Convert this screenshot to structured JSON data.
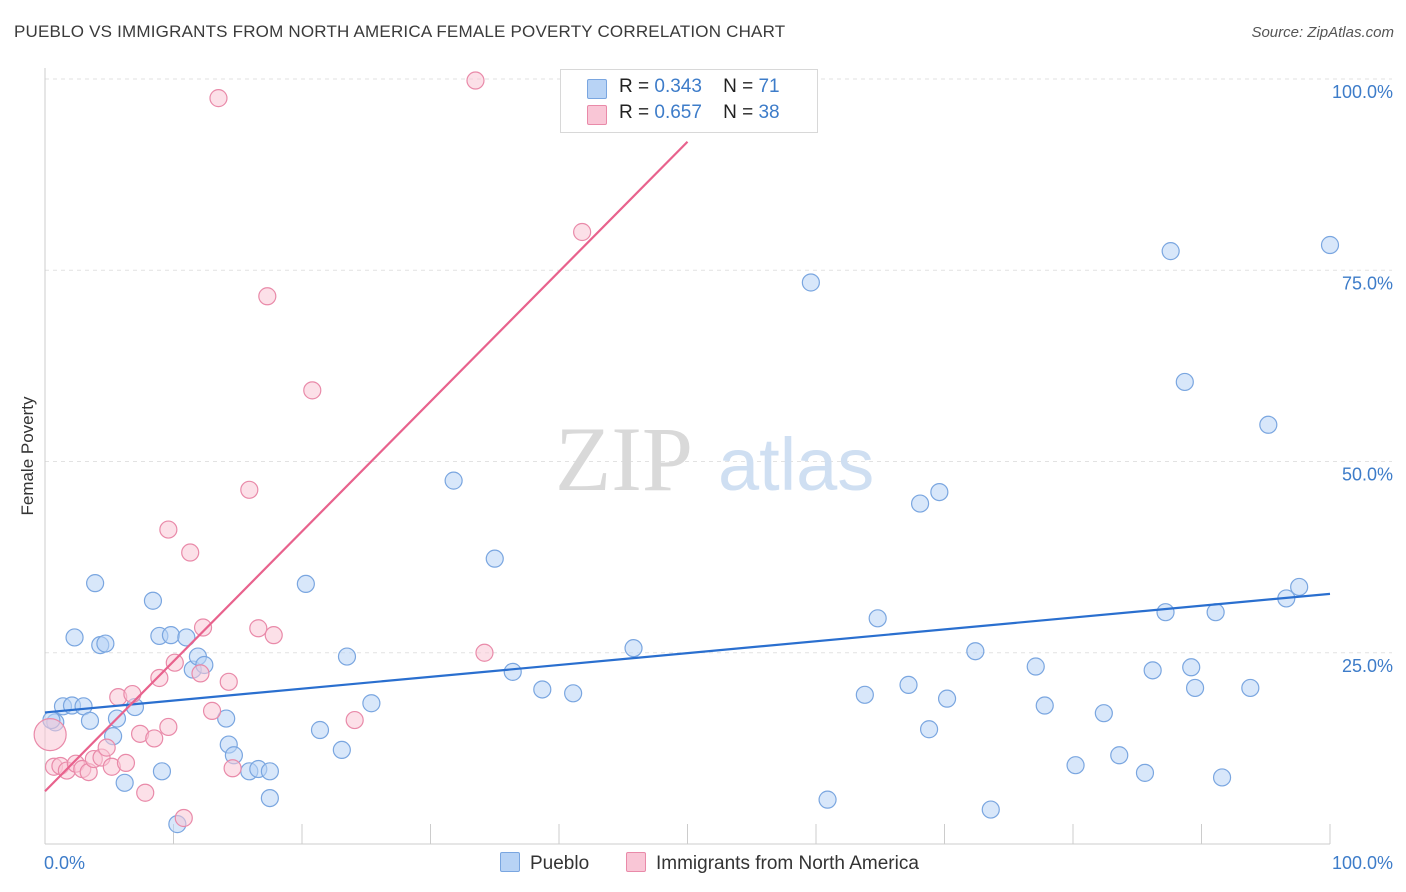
{
  "title": "PUEBLO VS IMMIGRANTS FROM NORTH AMERICA FEMALE POVERTY CORRELATION CHART",
  "source": "Source: ZipAtlas.com",
  "watermark": {
    "zip": "ZIP",
    "atlas": "atlas"
  },
  "legend": {
    "rows": [
      {
        "r_label": "R =",
        "r_value": "0.343",
        "n_label": "N =",
        "n_value": "71",
        "color": "#b8d3f5",
        "border": "#7aa6e0"
      },
      {
        "r_label": "R =",
        "r_value": "0.657",
        "n_label": "N =",
        "n_value": "38",
        "color": "#f9c6d6",
        "border": "#e98aa9"
      }
    ]
  },
  "bottom_legend": [
    {
      "label": "Pueblo",
      "color": "#b8d3f5",
      "border": "#7aa6e0"
    },
    {
      "label": "Immigrants from North America",
      "color": "#f9c6d6",
      "border": "#e98aa9"
    }
  ],
  "chart_data": {
    "type": "scatter",
    "title": "PUEBLO VS IMMIGRANTS FROM NORTH AMERICA FEMALE POVERTY CORRELATION CHART",
    "xlabel": "",
    "ylabel": "Female Poverty",
    "xlim": [
      0,
      100
    ],
    "ylim": [
      0,
      100
    ],
    "x_tick_labels": [
      "0.0%",
      "100.0%"
    ],
    "y_tick_labels": [
      "25.0%",
      "50.0%",
      "75.0%",
      "100.0%"
    ],
    "y_ticks": [
      25,
      50,
      75,
      100
    ],
    "colors": {
      "pueblo_line": "#2a6fcf",
      "immigrants_line": "#e8628d",
      "grid": "#e2e2e2",
      "axis_label": "#3d7cc9"
    },
    "series": [
      {
        "name": "Pueblo",
        "r": 0.343,
        "n": 71,
        "trend": {
          "x": [
            0,
            100
          ],
          "y": [
            17.2,
            32.7
          ]
        },
        "points": [
          {
            "x": 0.8,
            "y": 15.9
          },
          {
            "x": 1.4,
            "y": 18
          },
          {
            "x": 2.1,
            "y": 18.1
          },
          {
            "x": 3,
            "y": 18
          },
          {
            "x": 2.3,
            "y": 27
          },
          {
            "x": 3.5,
            "y": 16.1
          },
          {
            "x": 3.9,
            "y": 34.1
          },
          {
            "x": 4.3,
            "y": 26
          },
          {
            "x": 4.7,
            "y": 26.2
          },
          {
            "x": 5.3,
            "y": 14.1
          },
          {
            "x": 5.6,
            "y": 16.4
          },
          {
            "x": 6.2,
            "y": 8
          },
          {
            "x": 7,
            "y": 17.9
          },
          {
            "x": 8.4,
            "y": 31.8
          },
          {
            "x": 8.9,
            "y": 27.2
          },
          {
            "x": 9.1,
            "y": 9.5
          },
          {
            "x": 9.8,
            "y": 27.3
          },
          {
            "x": 10.3,
            "y": 2.6
          },
          {
            "x": 11,
            "y": 27
          },
          {
            "x": 11.5,
            "y": 22.8
          },
          {
            "x": 11.9,
            "y": 24.5
          },
          {
            "x": 12.4,
            "y": 23.4
          },
          {
            "x": 14.1,
            "y": 16.4
          },
          {
            "x": 14.3,
            "y": 13
          },
          {
            "x": 14.7,
            "y": 11.6
          },
          {
            "x": 15.9,
            "y": 9.5
          },
          {
            "x": 16.6,
            "y": 9.8
          },
          {
            "x": 17.5,
            "y": 9.5
          },
          {
            "x": 17.5,
            "y": 6
          },
          {
            "x": 20.3,
            "y": 34
          },
          {
            "x": 21.4,
            "y": 14.9
          },
          {
            "x": 23.1,
            "y": 12.3
          },
          {
            "x": 23.5,
            "y": 24.5
          },
          {
            "x": 25.4,
            "y": 18.4
          },
          {
            "x": 31.8,
            "y": 47.5
          },
          {
            "x": 35,
            "y": 37.3
          },
          {
            "x": 36.4,
            "y": 22.5
          },
          {
            "x": 38.7,
            "y": 20.2
          },
          {
            "x": 41.1,
            "y": 19.7
          },
          {
            "x": 45.8,
            "y": 25.6
          },
          {
            "x": 59.6,
            "y": 73.4
          },
          {
            "x": 60.9,
            "y": 5.8
          },
          {
            "x": 63.8,
            "y": 19.5
          },
          {
            "x": 64.8,
            "y": 29.5
          },
          {
            "x": 67.2,
            "y": 20.8
          },
          {
            "x": 68.8,
            "y": 15
          },
          {
            "x": 68.1,
            "y": 44.5
          },
          {
            "x": 69.6,
            "y": 46
          },
          {
            "x": 70.2,
            "y": 19
          },
          {
            "x": 72.4,
            "y": 25.2
          },
          {
            "x": 73.6,
            "y": 4.5
          },
          {
            "x": 77.1,
            "y": 23.2
          },
          {
            "x": 77.8,
            "y": 18.1
          },
          {
            "x": 80.2,
            "y": 10.3
          },
          {
            "x": 82.4,
            "y": 17.1
          },
          {
            "x": 83.6,
            "y": 11.6
          },
          {
            "x": 85.6,
            "y": 9.3
          },
          {
            "x": 86.2,
            "y": 22.7
          },
          {
            "x": 87.2,
            "y": 30.3
          },
          {
            "x": 87.6,
            "y": 77.5
          },
          {
            "x": 88.7,
            "y": 60.4
          },
          {
            "x": 89.2,
            "y": 23.1
          },
          {
            "x": 89.5,
            "y": 20.4
          },
          {
            "x": 91.1,
            "y": 30.3
          },
          {
            "x": 91.6,
            "y": 8.7
          },
          {
            "x": 93.8,
            "y": 20.4
          },
          {
            "x": 95.2,
            "y": 54.8
          },
          {
            "x": 96.6,
            "y": 32.1
          },
          {
            "x": 97.6,
            "y": 33.6
          },
          {
            "x": 100,
            "y": 78.3
          },
          {
            "x": 0.5,
            "y": 16.2
          }
        ]
      },
      {
        "name": "Immigrants from North America",
        "r": 0.657,
        "n": 38,
        "trend": {
          "x": [
            0,
            50
          ],
          "y": [
            6.9,
            91.8
          ]
        },
        "points": [
          {
            "x": 0.4,
            "y": 14.3
          },
          {
            "x": 0.7,
            "y": 10.1
          },
          {
            "x": 1.2,
            "y": 10.2
          },
          {
            "x": 1.7,
            "y": 9.6
          },
          {
            "x": 2.4,
            "y": 10.5
          },
          {
            "x": 2.9,
            "y": 9.8
          },
          {
            "x": 3.4,
            "y": 9.4
          },
          {
            "x": 3.8,
            "y": 11.1
          },
          {
            "x": 4.4,
            "y": 11.3
          },
          {
            "x": 4.8,
            "y": 12.6
          },
          {
            "x": 5.2,
            "y": 10.1
          },
          {
            "x": 5.7,
            "y": 19.2
          },
          {
            "x": 6.3,
            "y": 10.6
          },
          {
            "x": 6.8,
            "y": 19.6
          },
          {
            "x": 7.4,
            "y": 14.4
          },
          {
            "x": 7.8,
            "y": 6.7
          },
          {
            "x": 8.5,
            "y": 13.8
          },
          {
            "x": 8.9,
            "y": 21.7
          },
          {
            "x": 9.6,
            "y": 15.3
          },
          {
            "x": 9.6,
            "y": 41.1
          },
          {
            "x": 10.1,
            "y": 23.7
          },
          {
            "x": 10.8,
            "y": 3.4
          },
          {
            "x": 11.3,
            "y": 38.1
          },
          {
            "x": 12.1,
            "y": 22.3
          },
          {
            "x": 12.3,
            "y": 28.3
          },
          {
            "x": 13,
            "y": 17.4
          },
          {
            "x": 13.5,
            "y": 97.5
          },
          {
            "x": 14.3,
            "y": 21.2
          },
          {
            "x": 14.6,
            "y": 9.9
          },
          {
            "x": 15.9,
            "y": 46.3
          },
          {
            "x": 16.6,
            "y": 28.2
          },
          {
            "x": 17.3,
            "y": 71.6
          },
          {
            "x": 17.8,
            "y": 27.3
          },
          {
            "x": 20.8,
            "y": 59.3
          },
          {
            "x": 24.1,
            "y": 16.2
          },
          {
            "x": 33.5,
            "y": 99.8
          },
          {
            "x": 34.2,
            "y": 25
          },
          {
            "x": 41.8,
            "y": 80
          }
        ]
      }
    ]
  }
}
